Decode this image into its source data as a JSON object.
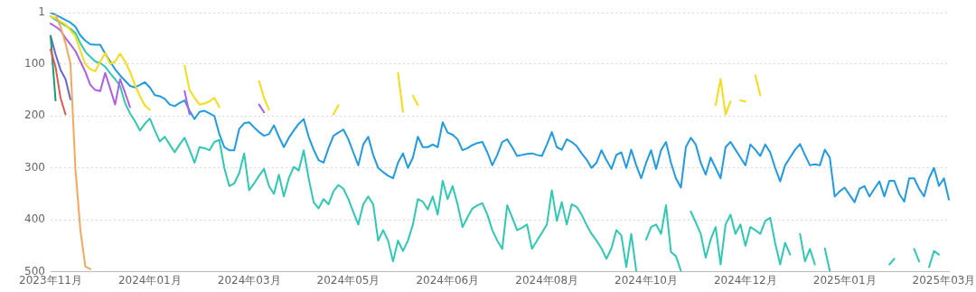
{
  "chart_data": {
    "type": "line",
    "categories": [
      "2023年11月",
      null,
      null,
      null,
      null,
      null,
      null,
      null,
      null,
      null,
      null,
      null,
      null,
      null,
      null,
      null,
      null,
      null,
      null,
      null,
      "2024年01月",
      null,
      null,
      null,
      null,
      null,
      null,
      null,
      null,
      null,
      null,
      null,
      null,
      null,
      null,
      null,
      null,
      null,
      null,
      null,
      "2024年03月",
      null,
      null,
      null,
      null,
      null,
      null,
      null,
      null,
      null,
      null,
      null,
      null,
      null,
      null,
      null,
      null,
      null,
      null,
      null,
      "2024年05月",
      null,
      null,
      null,
      null,
      null,
      null,
      null,
      null,
      null,
      null,
      null,
      null,
      null,
      null,
      null,
      null,
      null,
      null,
      null,
      "2024年06月",
      null,
      null,
      null,
      null,
      null,
      null,
      null,
      null,
      null,
      null,
      null,
      null,
      null,
      null,
      null,
      null,
      null,
      null,
      null,
      "2024年08月",
      null,
      null,
      null,
      null,
      null,
      null,
      null,
      null,
      null,
      null,
      null,
      null,
      null,
      null,
      null,
      null,
      null,
      null,
      null,
      "2024年10月",
      null,
      null,
      null,
      null,
      null,
      null,
      null,
      null,
      null,
      null,
      null,
      null,
      null,
      null,
      null,
      null,
      null,
      null,
      null,
      "2024年12月",
      null,
      null,
      null,
      null,
      null,
      null,
      null,
      null,
      null,
      null,
      null,
      null,
      null,
      null,
      null,
      null,
      null,
      null,
      null,
      "2025年01月",
      null,
      null,
      null,
      null,
      null,
      null,
      null,
      null,
      null,
      null,
      null,
      null,
      null,
      null,
      null,
      null,
      null,
      null,
      null,
      "2025年03月",
      null
    ],
    "ylim": [
      500,
      1
    ],
    "yticks": [
      1,
      100,
      200,
      300,
      400,
      500
    ],
    "grid": "y",
    "series": [
      {
        "color": "#f5a85a",
        "values": [
          null,
          5,
          28,
          60,
          99,
          302,
          420,
          490,
          495,
          null,
          null,
          null,
          null,
          null,
          null,
          null,
          null,
          null,
          null,
          null,
          null,
          null,
          null,
          null,
          null,
          null,
          null,
          null,
          null,
          null,
          null,
          null,
          null,
          null,
          null,
          null,
          null,
          null,
          null,
          null,
          null,
          null,
          null,
          null,
          null,
          null,
          null,
          null,
          null,
          null,
          null,
          null,
          null,
          null,
          null,
          null,
          null,
          null,
          null,
          null,
          null,
          null,
          null,
          null,
          null,
          null,
          null,
          null,
          null,
          null,
          null,
          null,
          null,
          null,
          null,
          null,
          null,
          null,
          null,
          null,
          null,
          null,
          null,
          null,
          null,
          null,
          null,
          null,
          null,
          null,
          null,
          null,
          null,
          null,
          null,
          null,
          null,
          null,
          null,
          null,
          null,
          null,
          null,
          null,
          null,
          null,
          null,
          null,
          null,
          null,
          null,
          null,
          null,
          null,
          null,
          null,
          null,
          null,
          null,
          null,
          null,
          null,
          null,
          null,
          null,
          null,
          null,
          null,
          null,
          null,
          null,
          null,
          null,
          null,
          null,
          null,
          null,
          null,
          null,
          null,
          null,
          null,
          null,
          null,
          null,
          null,
          null,
          null,
          null,
          null,
          null,
          null,
          null,
          null,
          null,
          null,
          null,
          null,
          null,
          null,
          null,
          null,
          null,
          null,
          null,
          null,
          null,
          null,
          null,
          null,
          null,
          null,
          null,
          null,
          null,
          null,
          null,
          null,
          null,
          null,
          null,
          null
        ]
      },
      {
        "color": "#e0574f",
        "values": [
          72,
          106,
          165,
          197,
          null,
          null,
          null,
          null,
          null,
          null,
          null,
          null,
          null,
          null,
          null,
          null,
          null,
          null,
          null,
          null,
          null,
          null,
          null,
          null,
          null,
          null,
          null,
          null,
          null,
          null,
          null,
          null,
          null,
          null,
          null,
          null,
          null,
          null,
          null,
          null,
          null,
          null,
          null,
          null,
          null,
          null,
          null,
          null,
          null,
          null,
          null,
          null,
          null,
          null,
          null,
          null,
          null,
          null,
          null,
          null,
          null,
          null,
          null,
          null,
          null,
          null,
          null,
          null,
          null,
          null,
          null,
          null,
          null,
          null,
          null,
          null,
          null,
          null,
          null,
          null,
          null,
          null,
          null,
          null,
          null,
          null,
          null,
          null,
          null,
          null,
          null,
          null,
          null,
          null,
          null,
          null,
          null,
          null,
          null,
          null,
          null,
          null,
          null,
          null,
          null,
          null,
          null,
          null,
          null,
          null,
          null,
          null,
          null,
          null,
          null,
          null,
          null,
          null,
          null,
          null,
          null,
          null,
          null,
          null,
          null,
          null,
          null,
          null,
          null,
          null,
          null,
          null,
          null,
          null,
          null,
          null,
          null,
          null,
          null,
          null,
          null,
          null,
          null,
          null,
          null,
          null,
          null,
          null,
          null,
          null,
          null,
          null,
          null,
          null,
          null,
          null,
          null,
          null,
          null,
          null,
          null,
          null,
          null,
          null,
          null,
          null,
          null,
          null,
          null,
          null,
          null,
          null,
          null,
          null,
          null,
          null,
          null,
          null,
          null,
          null,
          null,
          null
        ]
      },
      {
        "color": "#1a9e6e",
        "values": [
          46,
          170,
          null,
          null,
          null,
          null,
          null,
          null,
          null,
          null,
          null,
          null,
          null,
          null,
          null,
          null,
          null,
          null,
          null,
          null,
          null,
          null,
          null,
          null,
          null,
          null,
          null,
          null,
          null,
          null,
          null,
          null,
          null,
          null,
          null,
          null,
          null,
          null,
          null,
          null,
          null,
          null,
          null,
          null,
          null,
          null,
          null,
          null,
          null,
          null,
          null,
          null,
          null,
          null,
          null,
          null,
          null,
          null,
          null,
          null,
          null,
          null,
          null,
          null,
          null,
          null,
          null,
          null,
          null,
          null,
          null,
          null,
          null,
          null,
          null,
          null,
          null,
          null,
          null,
          null,
          null,
          null,
          null,
          null,
          null,
          null,
          null,
          null,
          null,
          null,
          null,
          null,
          null,
          null,
          null,
          null,
          null,
          null,
          null,
          null,
          null,
          null,
          null,
          null,
          null,
          null,
          null,
          null,
          null,
          null,
          null,
          null,
          null,
          null,
          null,
          null,
          null,
          null,
          null,
          null,
          null,
          null,
          null,
          null,
          null,
          null,
          null,
          null,
          null,
          null,
          null,
          null,
          null,
          null,
          null,
          null,
          null,
          null,
          null,
          null,
          null,
          null,
          null,
          null,
          null,
          null,
          null,
          null,
          null,
          null,
          null,
          null,
          null,
          null,
          null,
          null,
          null,
          null,
          null,
          null,
          null,
          null,
          null,
          null,
          null,
          null,
          null,
          null,
          null,
          null,
          null,
          null,
          null,
          null,
          null,
          null,
          null,
          null,
          null,
          null,
          null,
          null
        ]
      },
      {
        "color": "#6464e0",
        "values": [
          46,
          81,
          111,
          129,
          168,
          null,
          null,
          null,
          null,
          null,
          null,
          null,
          null,
          null,
          null,
          null,
          null,
          null,
          null,
          null,
          null,
          null,
          null,
          null,
          null,
          null,
          null,
          null,
          null,
          null,
          null,
          null,
          null,
          null,
          null,
          null,
          null,
          null,
          null,
          null,
          null,
          null,
          null,
          null,
          null,
          null,
          null,
          null,
          null,
          null,
          null,
          null,
          null,
          null,
          null,
          null,
          null,
          null,
          null,
          null,
          null,
          null,
          null,
          null,
          null,
          null,
          null,
          null,
          null,
          null,
          null,
          null,
          null,
          null,
          null,
          null,
          null,
          null,
          null,
          null,
          null,
          null,
          null,
          null,
          null,
          null,
          null,
          null,
          null,
          null,
          null,
          null,
          null,
          null,
          null,
          null,
          null,
          null,
          null,
          null,
          null,
          null,
          null,
          null,
          null,
          null,
          null,
          null,
          null,
          null,
          null,
          null,
          null,
          null,
          null,
          null,
          null,
          null,
          null,
          null,
          null,
          null,
          null,
          null,
          null,
          null,
          null,
          null,
          null,
          null,
          null,
          null,
          null,
          null,
          null,
          null,
          null,
          null,
          null,
          null,
          null,
          null,
          null,
          null,
          null,
          null,
          null,
          null,
          null,
          null,
          null,
          null,
          null,
          null,
          null,
          null,
          null,
          null,
          null,
          null,
          null,
          null,
          null,
          null,
          null,
          null,
          null,
          null,
          null,
          null,
          null,
          null,
          null,
          null,
          null,
          null,
          null,
          null,
          null,
          null,
          null,
          null
        ]
      },
      {
        "color": "#b05ee6",
        "values": [
          22,
          28,
          35,
          50,
          62,
          75,
          95,
          115,
          140,
          150,
          152,
          117,
          147,
          178,
          129,
          155,
          183,
          null,
          null,
          null,
          null,
          null,
          null,
          null,
          null,
          null,
          null,
          152,
          197,
          null,
          null,
          null,
          null,
          null,
          null,
          null,
          null,
          null,
          null,
          null,
          null,
          null,
          178,
          193,
          null,
          null,
          null,
          null,
          null,
          null,
          null,
          null,
          null,
          null,
          null,
          null,
          null,
          null,
          null,
          null,
          null,
          null,
          null,
          null,
          null,
          null,
          null,
          null,
          null,
          null,
          null,
          null,
          null,
          null,
          null,
          null,
          null,
          null,
          null,
          null,
          null,
          null,
          null,
          null,
          null,
          null,
          null,
          null,
          null,
          null,
          null,
          null,
          null,
          null,
          null,
          null,
          null,
          null,
          null,
          null,
          null,
          null,
          null,
          null,
          null,
          null,
          null,
          null,
          null,
          null,
          null,
          null,
          null,
          null,
          null,
          null,
          null,
          null,
          null,
          null,
          null,
          null,
          null,
          null,
          null,
          null,
          null,
          null,
          null,
          null,
          null,
          null,
          null,
          null,
          null,
          null,
          null,
          null,
          null,
          null,
          null,
          null,
          null,
          null,
          null,
          null,
          null,
          null,
          null,
          null,
          null,
          null,
          null,
          null,
          null,
          null,
          null,
          null,
          null,
          null,
          null,
          null,
          null,
          null,
          null,
          null,
          null,
          null,
          null,
          null,
          null,
          null,
          null,
          null,
          null,
          null,
          null,
          null,
          null,
          null,
          null,
          null
        ]
      },
      {
        "color": "#f5dc14",
        "values": [
          8,
          12,
          18,
          24,
          35,
          46,
          75,
          100,
          110,
          114,
          95,
          79,
          100,
          95,
          80,
          95,
          115,
          140,
          162,
          180,
          188,
          null,
          null,
          null,
          null,
          null,
          null,
          103,
          150,
          165,
          178,
          176,
          172,
          165,
          183,
          null,
          null,
          null,
          null,
          null,
          null,
          null,
          133,
          165,
          188,
          null,
          null,
          null,
          null,
          null,
          null,
          null,
          null,
          null,
          null,
          null,
          null,
          197,
          179,
          null,
          null,
          null,
          null,
          null,
          null,
          null,
          null,
          null,
          null,
          null,
          117,
          192,
          null,
          161,
          179,
          null,
          null,
          null,
          null,
          null,
          null,
          null,
          null,
          null,
          null,
          null,
          null,
          null,
          null,
          null,
          null,
          null,
          null,
          null,
          null,
          null,
          null,
          null,
          null,
          null,
          null,
          null,
          null,
          null,
          null,
          null,
          null,
          null,
          null,
          null,
          null,
          null,
          null,
          null,
          null,
          null,
          null,
          null,
          null,
          null,
          null,
          null,
          null,
          null,
          null,
          null,
          null,
          null,
          null,
          null,
          null,
          null,
          null,
          null,
          179,
          129,
          197,
          172,
          null,
          170,
          172,
          null,
          122,
          160,
          null,
          null,
          null,
          null,
          null,
          null,
          null,
          null,
          null,
          null,
          null,
          null,
          null,
          null,
          null,
          null,
          null,
          null,
          null,
          null,
          null,
          null,
          null,
          null,
          null,
          null,
          null,
          null,
          null,
          null,
          null,
          null,
          null,
          null,
          null,
          null,
          null,
          null
        ]
      },
      {
        "color": "#2ec9b3",
        "values": [
          8,
          15,
          20,
          26,
          32,
          40,
          60,
          76,
          86,
          95,
          98,
          105,
          118,
          129,
          142,
          175,
          195,
          210,
          228,
          215,
          205,
          228,
          249,
          240,
          255,
          270,
          255,
          242,
          265,
          290,
          260,
          262,
          266,
          250,
          246,
          300,
          335,
          330,
          310,
          272,
          343,
          330,
          315,
          302,
          335,
          350,
          313,
          355,
          320,
          298,
          305,
          266,
          320,
          366,
          378,
          360,
          370,
          345,
          333,
          340,
          360,
          385,
          409,
          370,
          355,
          370,
          440,
          420,
          440,
          480,
          440,
          460,
          440,
          409,
          360,
          365,
          380,
          355,
          390,
          325,
          360,
          335,
          370,
          414,
          395,
          378,
          372,
          368,
          390,
          420,
          440,
          456,
          372,
          395,
          420,
          415,
          409,
          456,
          440,
          425,
          409,
          343,
          402,
          366,
          409,
          370,
          375,
          390,
          410,
          427,
          440,
          455,
          475,
          455,
          420,
          430,
          491,
          427,
          498,
          null,
          438,
          414,
          409,
          427,
          372,
          462,
          470,
          498,
          null,
          384,
          405,
          427,
          473,
          438,
          414,
          486,
          409,
          390,
          427,
          409,
          450,
          414,
          420,
          427,
          402,
          396,
          445,
          486,
          444,
          467,
          null,
          427,
          480,
          456,
          486,
          null,
          455,
          498,
          null,
          null,
          null,
          null,
          null,
          null,
          null,
          null,
          null,
          null,
          null,
          486,
          475,
          null,
          null,
          null,
          456,
          480,
          null,
          491,
          460,
          467,
          null,
          null
        ]
      },
      {
        "color": "#1f9be6",
        "values": [
          1,
          5,
          10,
          15,
          20,
          28,
          45,
          55,
          62,
          63,
          63,
          80,
          95,
          110,
          122,
          132,
          142,
          145,
          140,
          135,
          145,
          160,
          162,
          167,
          178,
          181,
          175,
          170,
          190,
          206,
          192,
          190,
          195,
          200,
          235,
          260,
          266,
          266,
          225,
          214,
          212,
          222,
          231,
          238,
          235,
          218,
          240,
          260,
          242,
          228,
          215,
          206,
          240,
          265,
          285,
          290,
          262,
          238,
          232,
          226,
          245,
          270,
          295,
          255,
          240,
          275,
          300,
          308,
          315,
          320,
          290,
          272,
          300,
          280,
          240,
          260,
          260,
          255,
          260,
          212,
          232,
          236,
          245,
          266,
          262,
          256,
          252,
          250,
          270,
          295,
          275,
          250,
          245,
          260,
          277,
          275,
          273,
          272,
          275,
          277,
          255,
          231,
          260,
          265,
          245,
          250,
          258,
          272,
          284,
          300,
          290,
          266,
          285,
          302,
          275,
          270,
          300,
          265,
          295,
          320,
          290,
          266,
          302,
          266,
          250,
          290,
          320,
          338,
          260,
          242,
          255,
          290,
          313,
          280,
          300,
          320,
          260,
          250,
          265,
          280,
          295,
          255,
          265,
          277,
          255,
          270,
          300,
          326,
          295,
          280,
          265,
          254,
          275,
          295,
          293,
          295,
          265,
          280,
          355,
          345,
          338,
          352,
          366,
          340,
          335,
          355,
          340,
          326,
          355,
          325,
          325,
          350,
          365,
          320,
          320,
          340,
          355,
          320,
          300,
          335,
          320,
          361
        ]
      }
    ]
  }
}
